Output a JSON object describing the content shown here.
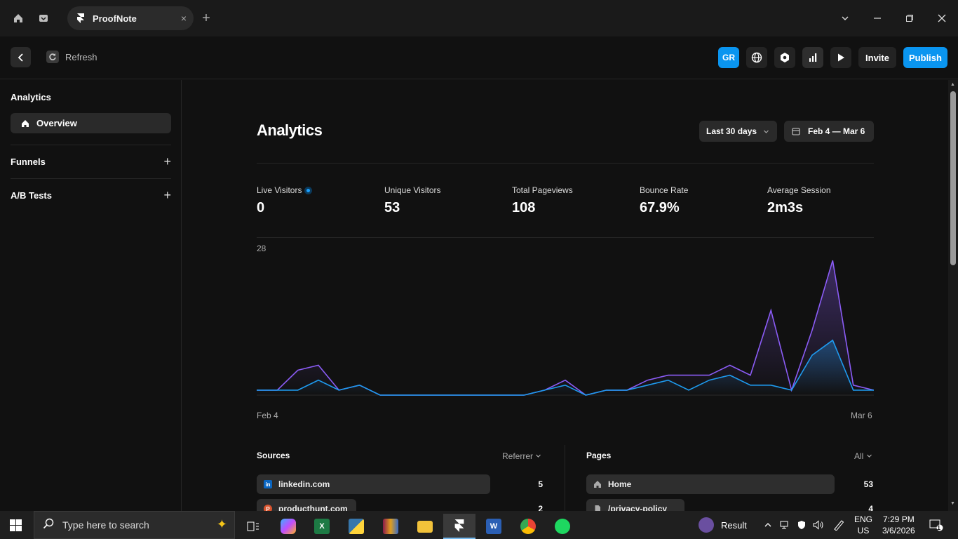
{
  "browser": {
    "tab_title": "ProofNote",
    "tab_close": "×",
    "new_tab": "+"
  },
  "toolbar": {
    "refresh_label": "Refresh",
    "avatar_initials": "GR",
    "invite_label": "Invite",
    "publish_label": "Publish"
  },
  "sidebar": {
    "section_title": "Analytics",
    "active_item": "Overview",
    "groups": [
      {
        "label": "Funnels",
        "action": "+"
      },
      {
        "label": "A/B Tests",
        "action": "+"
      }
    ]
  },
  "main": {
    "title": "Analytics",
    "range_select": "Last 30 days",
    "date_range": "Feb 4 — Mar 6",
    "stats": [
      {
        "label": "Live Visitors",
        "value": "0"
      },
      {
        "label": "Unique Visitors",
        "value": "53"
      },
      {
        "label": "Total Pageviews",
        "value": "108"
      },
      {
        "label": "Bounce Rate",
        "value": "67.9%"
      },
      {
        "label": "Average Session",
        "value": "2m3s"
      }
    ],
    "sources": {
      "title": "Sources",
      "filter": "Referrer",
      "rows": [
        {
          "label": "linkedin.com",
          "value": "5",
          "fill": 0.94
        },
        {
          "label": "producthunt.com",
          "value": "2",
          "fill": 0.4
        }
      ]
    },
    "pages": {
      "title": "Pages",
      "filter": "All",
      "rows": [
        {
          "label": "Home",
          "value": "53",
          "fill": 1.0
        },
        {
          "label": "/privacy-policy",
          "value": "4",
          "fill": 0.25
        }
      ]
    }
  },
  "chart_data": {
    "type": "area",
    "y_max_label": "28",
    "x_start_label": "Feb 4",
    "x_end_label": "Mar 6",
    "ylim": [
      0,
      28
    ],
    "colors": {
      "pageviews": "#8b5cf6",
      "visitors": "#1e9bf0"
    },
    "series": [
      {
        "values": [
          1,
          1,
          5,
          6,
          1,
          2,
          0,
          0,
          0,
          0,
          0,
          0,
          0,
          0,
          1,
          3,
          0,
          1,
          1,
          3,
          4,
          4,
          4,
          6,
          4,
          17,
          1,
          13,
          27,
          2,
          1
        ]
      },
      {
        "values": [
          1,
          1,
          1,
          3,
          1,
          2,
          0,
          0,
          0,
          0,
          0,
          0,
          0,
          0,
          1,
          2,
          0,
          1,
          1,
          2,
          3,
          1,
          3,
          4,
          2,
          2,
          1,
          8,
          11,
          1,
          1
        ]
      }
    ]
  },
  "taskbar": {
    "search_placeholder": "Type here to search",
    "tray_label": "Result",
    "lang_line1": "ENG",
    "lang_line2": "US",
    "time": "7:29 PM",
    "date": "3/6/2026",
    "notif_count": "1"
  }
}
